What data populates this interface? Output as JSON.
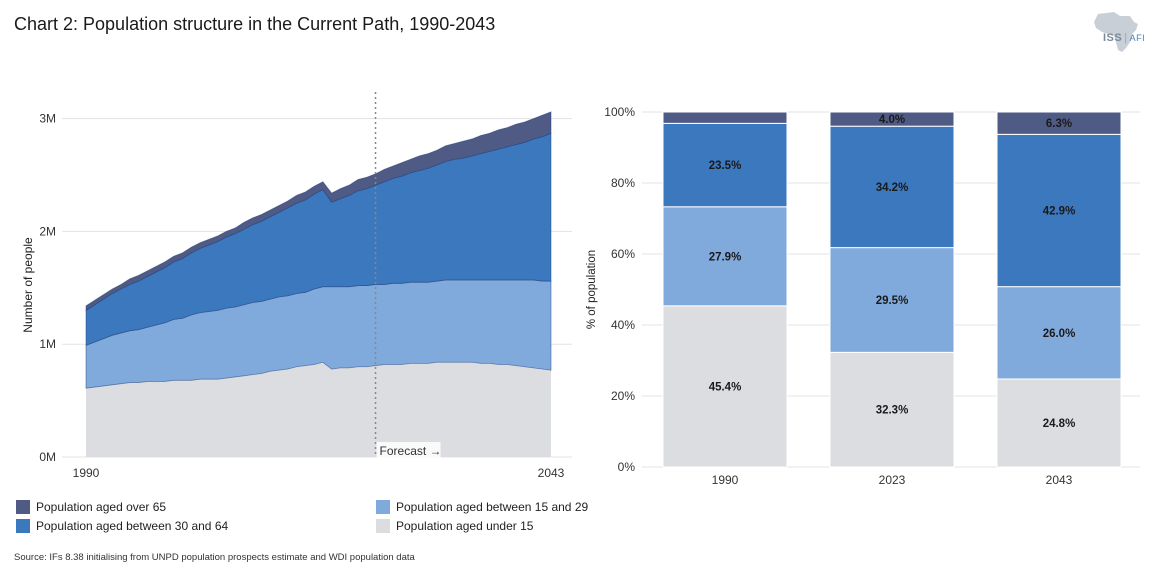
{
  "title": "Chart 2: Population structure in the Current Path, 1990-2043",
  "logo": {
    "text": "ISS",
    "suffix": "AFI"
  },
  "source": "Source: IFs 8.38 initialising from UNPD population prospects estimate and WDI population data",
  "colors": {
    "over65": "#4f5b85",
    "age30to64": "#3b78bd",
    "age15to29": "#80aadb",
    "under15": "#dcdde0",
    "grid": "#e3e3e3",
    "forecastLine": "#888888"
  },
  "legend": [
    {
      "key": "over65",
      "label": "Population aged over 65"
    },
    {
      "key": "age30to64",
      "label": "Population aged between 30 and 64"
    },
    {
      "key": "age15to29",
      "label": "Population aged between 15 and 29"
    },
    {
      "key": "under15",
      "label": "Population aged under 15"
    }
  ],
  "chart_data": [
    {
      "type": "area",
      "stacked": true,
      "ylabel": "Number of people",
      "ylim": [
        0,
        3.05
      ],
      "yticks": [
        0,
        1,
        2,
        3
      ],
      "ytick_labels": [
        "0M",
        "1M",
        "2M",
        "3M"
      ],
      "xlim": [
        1990,
        2043
      ],
      "xtick_labels": [
        "1990",
        "2043"
      ],
      "forecast_year": 2023,
      "forecast_label": "Forecast →",
      "x": [
        1990,
        1991,
        1992,
        1993,
        1994,
        1995,
        1996,
        1997,
        1998,
        1999,
        2000,
        2001,
        2002,
        2003,
        2004,
        2005,
        2006,
        2007,
        2008,
        2009,
        2010,
        2011,
        2012,
        2013,
        2014,
        2015,
        2016,
        2017,
        2018,
        2019,
        2020,
        2021,
        2022,
        2023,
        2024,
        2025,
        2026,
        2027,
        2028,
        2029,
        2030,
        2031,
        2032,
        2033,
        2034,
        2035,
        2036,
        2037,
        2038,
        2039,
        2040,
        2041,
        2042,
        2043
      ],
      "series": [
        {
          "key": "under15",
          "name": "Population aged under 15",
          "values": [
            0.61,
            0.62,
            0.63,
            0.64,
            0.65,
            0.66,
            0.66,
            0.67,
            0.67,
            0.67,
            0.68,
            0.68,
            0.68,
            0.69,
            0.69,
            0.69,
            0.7,
            0.71,
            0.72,
            0.73,
            0.74,
            0.76,
            0.77,
            0.78,
            0.8,
            0.81,
            0.82,
            0.84,
            0.78,
            0.79,
            0.79,
            0.8,
            0.8,
            0.81,
            0.82,
            0.82,
            0.82,
            0.83,
            0.83,
            0.83,
            0.84,
            0.84,
            0.84,
            0.84,
            0.84,
            0.83,
            0.83,
            0.82,
            0.82,
            0.81,
            0.8,
            0.79,
            0.78,
            0.77
          ]
        },
        {
          "key": "age15to29",
          "name": "Population aged between 15 and 29",
          "values": [
            0.38,
            0.4,
            0.42,
            0.44,
            0.45,
            0.46,
            0.47,
            0.48,
            0.5,
            0.52,
            0.54,
            0.55,
            0.58,
            0.59,
            0.6,
            0.61,
            0.62,
            0.62,
            0.63,
            0.64,
            0.64,
            0.64,
            0.65,
            0.65,
            0.65,
            0.65,
            0.67,
            0.67,
            0.73,
            0.72,
            0.72,
            0.72,
            0.72,
            0.72,
            0.71,
            0.72,
            0.72,
            0.72,
            0.72,
            0.72,
            0.72,
            0.73,
            0.73,
            0.73,
            0.73,
            0.74,
            0.74,
            0.75,
            0.75,
            0.76,
            0.77,
            0.78,
            0.78,
            0.79
          ]
        },
        {
          "key": "age30to64",
          "name": "Population aged between 30 and 64",
          "values": [
            0.31,
            0.33,
            0.35,
            0.37,
            0.39,
            0.41,
            0.43,
            0.45,
            0.47,
            0.49,
            0.51,
            0.53,
            0.55,
            0.57,
            0.59,
            0.61,
            0.63,
            0.65,
            0.67,
            0.69,
            0.71,
            0.73,
            0.75,
            0.78,
            0.8,
            0.82,
            0.84,
            0.86,
            0.75,
            0.78,
            0.81,
            0.84,
            0.86,
            0.88,
            0.91,
            0.93,
            0.95,
            0.97,
            0.99,
            1.01,
            1.03,
            1.05,
            1.07,
            1.08,
            1.1,
            1.12,
            1.14,
            1.16,
            1.18,
            1.2,
            1.22,
            1.25,
            1.28,
            1.31
          ]
        },
        {
          "key": "over65",
          "name": "Population aged over 65",
          "values": [
            0.04,
            0.04,
            0.04,
            0.04,
            0.04,
            0.05,
            0.05,
            0.05,
            0.05,
            0.05,
            0.05,
            0.05,
            0.05,
            0.05,
            0.05,
            0.05,
            0.05,
            0.05,
            0.06,
            0.06,
            0.06,
            0.06,
            0.06,
            0.06,
            0.07,
            0.07,
            0.07,
            0.07,
            0.08,
            0.09,
            0.09,
            0.1,
            0.1,
            0.1,
            0.11,
            0.11,
            0.12,
            0.12,
            0.13,
            0.13,
            0.13,
            0.14,
            0.14,
            0.15,
            0.15,
            0.16,
            0.16,
            0.17,
            0.17,
            0.18,
            0.18,
            0.18,
            0.19,
            0.19
          ]
        }
      ]
    },
    {
      "type": "bar",
      "stacked": true,
      "percent": true,
      "ylabel": "% of population",
      "ylim": [
        0,
        100
      ],
      "yticks": [
        0,
        20,
        40,
        60,
        80,
        100
      ],
      "ytick_labels": [
        "0%",
        "20%",
        "40%",
        "60%",
        "80%",
        "100%"
      ],
      "categories": [
        "1990",
        "2023",
        "2043"
      ],
      "series": [
        {
          "key": "under15",
          "name": "Population aged under 15",
          "values": [
            45.4,
            32.3,
            24.8
          ],
          "labels": [
            "45.4%",
            "32.3%",
            "24.8%"
          ]
        },
        {
          "key": "age15to29",
          "name": "Population aged between 15 and 29",
          "values": [
            27.9,
            29.5,
            26.0
          ],
          "labels": [
            "27.9%",
            "29.5%",
            "26.0%"
          ]
        },
        {
          "key": "age30to64",
          "name": "Population aged between 30 and 64",
          "values": [
            23.5,
            34.2,
            42.9
          ],
          "labels": [
            "23.5%",
            "34.2%",
            "42.9%"
          ]
        },
        {
          "key": "over65",
          "name": "Population aged over 65",
          "values": [
            3.2,
            4.0,
            6.3
          ],
          "labels": [
            "",
            "4.0%",
            "6.3%"
          ]
        }
      ]
    }
  ]
}
